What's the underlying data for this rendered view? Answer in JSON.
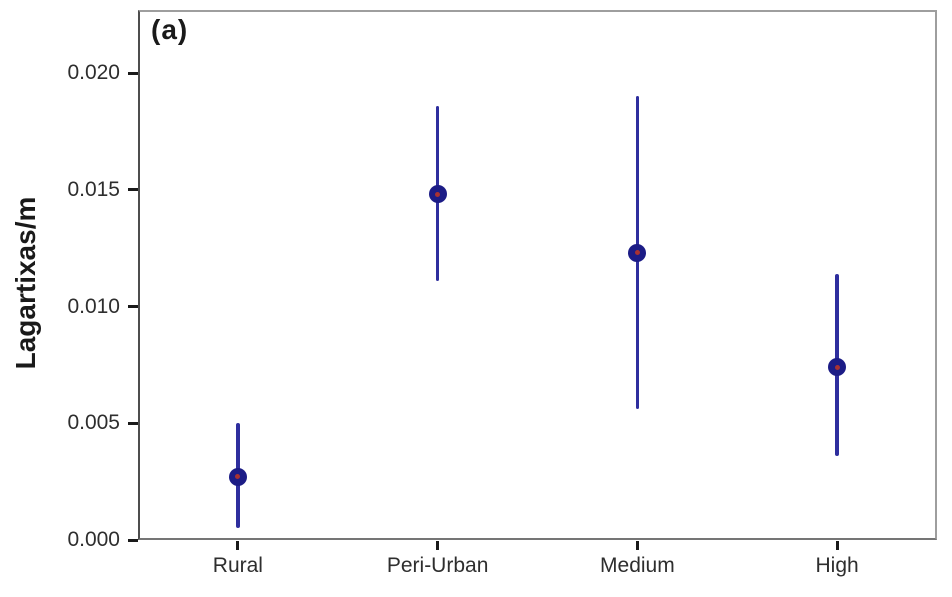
{
  "chart_data": {
    "type": "scatter",
    "subtype": "point-estimate-with-error-bars",
    "title": "",
    "annotation": "(a)",
    "xlabel": "",
    "ylabel": "Lagartixas/m",
    "categories": [
      "Rural",
      "Peri-Urban",
      "Medium",
      "High"
    ],
    "series": [
      {
        "name": "Lagartixas/m",
        "points": [
          {
            "category": "Rural",
            "value": 0.0027,
            "lower": 0.0005,
            "upper": 0.005
          },
          {
            "category": "Peri-Urban",
            "value": 0.0148,
            "lower": 0.0111,
            "upper": 0.0186
          },
          {
            "category": "Medium",
            "value": 0.0123,
            "lower": 0.0056,
            "upper": 0.019
          },
          {
            "category": "High",
            "value": 0.0074,
            "lower": 0.0036,
            "upper": 0.0114
          }
        ]
      }
    ],
    "y_ticks": [
      {
        "value": 0.0,
        "label": "0.000"
      },
      {
        "value": 0.005,
        "label": "0.005"
      },
      {
        "value": 0.01,
        "label": "0.010"
      },
      {
        "value": 0.015,
        "label": "0.015"
      },
      {
        "value": 0.02,
        "label": "0.020"
      }
    ],
    "ylim": [
      0,
      0.0227
    ],
    "grid": false,
    "legend": false,
    "colors": {
      "error_bar": "#2e2e9e",
      "marker": "#1c1c86",
      "marker_center": "#a83232",
      "frame": "#9e9e9e",
      "y_axis_line": "#4d4d4d",
      "x_axis_line": "#757575",
      "tick_mark": "#1a1a1a",
      "label_text": "#2e2e2e",
      "background": "#ffffff"
    }
  }
}
